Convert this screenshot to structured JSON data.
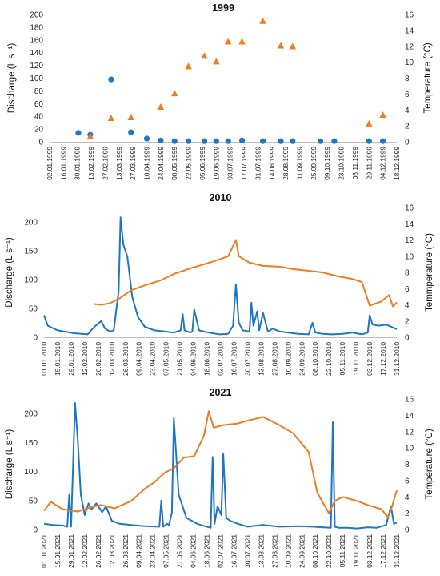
{
  "colors": {
    "discharge": "#1f77c4",
    "temperature": "#ef7d22",
    "axis": "#bfbfbf"
  },
  "chart_data": [
    {
      "type": "scatter",
      "title": "1999",
      "ylabel": "Discharge (L s⁻¹)",
      "y2label": "Temperature (°C)",
      "ylim": [
        0,
        200
      ],
      "yticks": [
        0,
        20,
        40,
        60,
        80,
        100,
        120,
        140,
        160,
        180,
        200
      ],
      "y2lim": [
        0,
        16
      ],
      "y2ticks": [
        0,
        2,
        4,
        6,
        8,
        10,
        12,
        14,
        16
      ],
      "xrange": [
        "1999-01-02",
        "1999-12-18"
      ],
      "xtick_labels": [
        "02.01.1999",
        "16.01.1999",
        "30.01.1999",
        "13.02.1999",
        "27.02.1999",
        "13.03.1999",
        "27.03.1999",
        "10.04.1999",
        "24.04.1999",
        "08.05.1999",
        "22.05.1999",
        "05.06.1999",
        "19.06.1999",
        "03.07.1999",
        "17.07.1999",
        "31.07.1999",
        "14.08.1999",
        "28.08.1999",
        "11.09.1999",
        "25.09.1999",
        "09.10.1999",
        "23.10.1999",
        "06.11.1999",
        "20.11.1999",
        "04.12.1999",
        "18.12.1999"
      ],
      "series": [
        {
          "name": "Discharge",
          "axis": "left",
          "marker": "circle",
          "x": [
            "1999-01-31",
            "1999-02-12",
            "1999-03-05",
            "1999-03-25",
            "1999-04-10",
            "1999-04-24",
            "1999-05-08",
            "1999-05-22",
            "1999-06-07",
            "1999-06-19",
            "1999-07-01",
            "1999-07-15",
            "1999-08-05",
            "1999-08-23",
            "1999-09-04",
            "1999-10-02",
            "1999-10-16",
            "1999-11-20",
            "1999-12-04"
          ],
          "y": [
            14,
            11,
            98,
            15,
            5,
            2,
            1,
            1,
            1,
            1,
            1,
            2,
            1,
            1,
            1,
            1,
            1,
            1,
            1
          ]
        },
        {
          "name": "Temperature",
          "axis": "right",
          "marker": "triangle",
          "x": [
            "1999-02-12",
            "1999-03-05",
            "1999-03-25",
            "1999-04-24",
            "1999-05-08",
            "1999-05-22",
            "1999-06-07",
            "1999-06-19",
            "1999-07-01",
            "1999-07-15",
            "1999-08-05",
            "1999-08-23",
            "1999-09-04",
            "1999-11-20",
            "1999-12-04"
          ],
          "y": [
            0.7,
            3.0,
            3.1,
            4.4,
            6.1,
            9.5,
            10.8,
            10.1,
            12.6,
            12.6,
            15.2,
            12.1,
            12.0,
            2.3,
            3.4
          ]
        }
      ]
    },
    {
      "type": "line",
      "title": "2010",
      "ylabel": "Discharge (L s⁻¹)",
      "y2label": "Temmperature (°C)",
      "ylim": [
        0,
        225
      ],
      "yticks": [
        0,
        50,
        100,
        150,
        200
      ],
      "y2lim": [
        0,
        16
      ],
      "y2ticks": [
        0,
        2,
        4,
        6,
        8,
        10,
        12,
        14,
        16
      ],
      "xrange": [
        "2010-01-01",
        "2010-12-31"
      ],
      "xtick_labels": [
        "01.01.2010",
        "15.01.2010",
        "29.01.2010",
        "12.02.2010",
        "26.02.2010",
        "12.03.2010",
        "26.03.2010",
        "09.04.2010",
        "23.04.2010",
        "07.05.2010",
        "21.05.2010",
        "04.06.2010",
        "18.06.2010",
        "02.07.2010",
        "16.07.2010",
        "30.07.2010",
        "13.08.2010",
        "27.08.2010",
        "10.09.2010",
        "24.09.2010",
        "08.10.2010",
        "22.10.2010",
        "05.11.2010",
        "19.11.2010",
        "03.12.2010",
        "17.12.2010",
        "31.12.2010"
      ],
      "series": [
        {
          "name": "Discharge",
          "axis": "left",
          "x": [
            "2010-01-01",
            "2010-01-05",
            "2010-01-15",
            "2010-02-01",
            "2010-02-15",
            "2010-02-22",
            "2010-03-01",
            "2010-03-05",
            "2010-03-10",
            "2010-03-14",
            "2010-03-19",
            "2010-03-21",
            "2010-03-24",
            "2010-03-28",
            "2010-04-02",
            "2010-04-08",
            "2010-04-15",
            "2010-04-25",
            "2010-05-05",
            "2010-05-15",
            "2010-05-22",
            "2010-05-24",
            "2010-05-26",
            "2010-06-01",
            "2010-06-03",
            "2010-06-05",
            "2010-06-10",
            "2010-06-20",
            "2010-07-01",
            "2010-07-10",
            "2010-07-15",
            "2010-07-18",
            "2010-07-21",
            "2010-07-25",
            "2010-08-01",
            "2010-08-03",
            "2010-08-05",
            "2010-08-09",
            "2010-08-11",
            "2010-08-15",
            "2010-08-20",
            "2010-08-25",
            "2010-09-01",
            "2010-09-10",
            "2010-09-20",
            "2010-10-01",
            "2010-10-05",
            "2010-10-08",
            "2010-10-15",
            "2010-10-25",
            "2010-11-05",
            "2010-11-15",
            "2010-11-25",
            "2010-12-01",
            "2010-12-03",
            "2010-12-06",
            "2010-12-12",
            "2010-12-20",
            "2010-12-31"
          ],
          "y": [
            38,
            20,
            12,
            7,
            5,
            18,
            28,
            15,
            10,
            12,
            80,
            208,
            160,
            140,
            70,
            35,
            18,
            12,
            10,
            8,
            12,
            40,
            12,
            8,
            10,
            48,
            12,
            8,
            5,
            6,
            20,
            92,
            25,
            12,
            10,
            60,
            20,
            45,
            12,
            42,
            10,
            15,
            10,
            8,
            6,
            5,
            25,
            8,
            6,
            5,
            6,
            8,
            5,
            8,
            38,
            22,
            20,
            22,
            14
          ]
        },
        {
          "name": "Temperature",
          "axis": "right",
          "x": [
            "2010-02-22",
            "2010-03-01",
            "2010-03-10",
            "2010-03-20",
            "2010-04-01",
            "2010-04-15",
            "2010-05-01",
            "2010-05-15",
            "2010-06-01",
            "2010-06-15",
            "2010-07-01",
            "2010-07-10",
            "2010-07-18",
            "2010-07-21",
            "2010-08-01",
            "2010-08-15",
            "2010-09-01",
            "2010-09-15",
            "2010-10-01",
            "2010-10-15",
            "2010-11-01",
            "2010-11-15",
            "2010-11-25",
            "2010-12-03",
            "2010-12-15",
            "2010-12-23",
            "2010-12-27",
            "2010-12-31"
          ],
          "y": [
            4.1,
            4.0,
            4.2,
            4.8,
            5.8,
            6.4,
            7.0,
            7.8,
            8.5,
            9.0,
            9.6,
            10.0,
            12.0,
            10.0,
            9.2,
            8.8,
            8.7,
            8.4,
            8.2,
            8.0,
            7.5,
            7.2,
            6.8,
            3.9,
            4.4,
            5.2,
            3.8,
            4.3
          ]
        }
      ]
    },
    {
      "type": "line",
      "title": "2021",
      "ylabel": "Discharge (L s⁻¹)",
      "y2label": "Temperature (°C)",
      "ylim": [
        0,
        225
      ],
      "yticks": [
        0,
        50,
        100,
        150,
        200
      ],
      "y2lim": [
        0,
        16
      ],
      "y2ticks": [
        0,
        2,
        4,
        6,
        8,
        10,
        12,
        14,
        16
      ],
      "xrange": [
        "2021-01-01",
        "2021-12-31"
      ],
      "xtick_labels": [
        "01.01.2021",
        "15.01.2021",
        "29.01.2021",
        "12.02.2021",
        "26.02.2021",
        "12.03.2021",
        "26.03.2021",
        "09.04.2021",
        "23.04.2021",
        "07.05.2021",
        "21.05.2021",
        "04.06.2021",
        "18.06.2021",
        "02.07.2021",
        "16.07.2021",
        "30.07.2021",
        "13.08.2021",
        "27.08.2021",
        "10.09.2021",
        "24.09.2021",
        "08.10.2021",
        "22.10.2021",
        "05.11.2021",
        "19.11.2021",
        "03.12.2021",
        "17.12.2021",
        "31.12.2021"
      ],
      "series": [
        {
          "name": "Discharge",
          "axis": "left",
          "x": [
            "2021-01-01",
            "2021-01-10",
            "2021-01-20",
            "2021-01-25",
            "2021-01-27",
            "2021-01-29",
            "2021-02-02",
            "2021-02-05",
            "2021-02-08",
            "2021-02-12",
            "2021-02-16",
            "2021-02-19",
            "2021-02-24",
            "2021-03-02",
            "2021-03-06",
            "2021-03-12",
            "2021-03-20",
            "2021-04-01",
            "2021-04-15",
            "2021-04-30",
            "2021-05-02",
            "2021-05-04",
            "2021-05-08",
            "2021-05-10",
            "2021-05-13",
            "2021-05-15",
            "2021-05-20",
            "2021-05-28",
            "2021-06-08",
            "2021-06-18",
            "2021-06-22",
            "2021-06-24",
            "2021-06-26",
            "2021-06-29",
            "2021-07-03",
            "2021-07-05",
            "2021-07-08",
            "2021-07-12",
            "2021-07-20",
            "2021-07-30",
            "2021-08-15",
            "2021-09-01",
            "2021-09-20",
            "2021-10-05",
            "2021-10-15",
            "2021-10-24",
            "2021-10-26",
            "2021-10-28",
            "2021-11-01",
            "2021-11-10",
            "2021-11-20",
            "2021-12-01",
            "2021-12-10",
            "2021-12-20",
            "2021-12-25",
            "2021-12-28",
            "2021-12-31"
          ],
          "y": [
            10,
            8,
            7,
            5,
            60,
            5,
            218,
            150,
            60,
            25,
            45,
            35,
            45,
            30,
            40,
            15,
            10,
            8,
            6,
            5,
            50,
            5,
            10,
            8,
            30,
            192,
            60,
            20,
            10,
            5,
            3,
            125,
            10,
            40,
            25,
            130,
            20,
            15,
            10,
            5,
            8,
            5,
            6,
            5,
            4,
            3,
            185,
            5,
            3,
            3,
            2,
            4,
            3,
            8,
            40,
            10,
            12
          ]
        },
        {
          "name": "Temperature",
          "axis": "right",
          "x": [
            "2021-01-01",
            "2021-01-08",
            "2021-01-20",
            "2021-02-05",
            "2021-02-20",
            "2021-03-01",
            "2021-03-15",
            "2021-04-01",
            "2021-04-15",
            "2021-04-25",
            "2021-05-06",
            "2021-05-15",
            "2021-05-25",
            "2021-06-05",
            "2021-06-15",
            "2021-06-20",
            "2021-06-25",
            "2021-07-05",
            "2021-07-20",
            "2021-08-01",
            "2021-08-15",
            "2021-09-01",
            "2021-09-15",
            "2021-10-01",
            "2021-10-10",
            "2021-10-22",
            "2021-10-28",
            "2021-11-05",
            "2021-11-20",
            "2021-12-01",
            "2021-12-15",
            "2021-12-22",
            "2021-12-26",
            "2021-12-31"
          ],
          "y": [
            2.3,
            3.4,
            2.5,
            2.2,
            2.8,
            3.0,
            2.6,
            3.5,
            5.0,
            5.8,
            7.0,
            7.5,
            8.8,
            9.0,
            11.5,
            14.5,
            12.5,
            12.8,
            13.0,
            13.4,
            13.8,
            12.8,
            11.8,
            9.5,
            4.5,
            2.0,
            3.5,
            4.0,
            3.5,
            3.0,
            2.5,
            1.5,
            2.8,
            4.8
          ]
        }
      ]
    }
  ]
}
